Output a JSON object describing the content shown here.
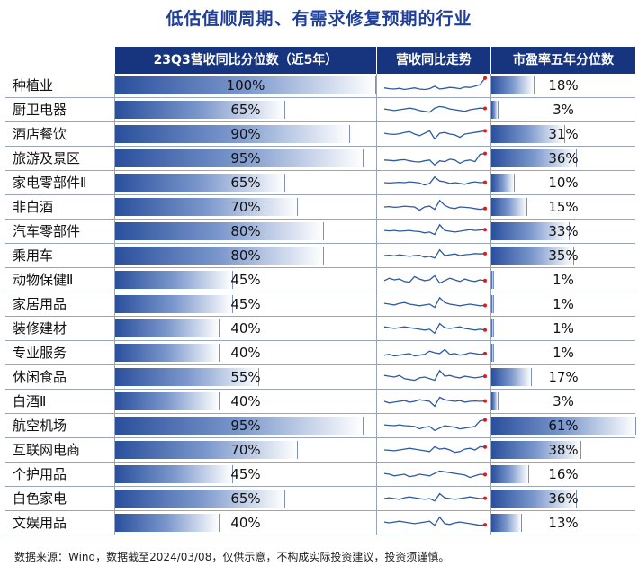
{
  "page": {
    "title": "低估值顺周期、有需求修复预期的行业",
    "footer": "数据来源：Wind，数据截至2024/03/08，仅供示意，不构成实际投资建议，投资须谨慎。"
  },
  "headers": {
    "col1": "",
    "col2": "23Q3营收同比分位数（近5年）",
    "col3": "营收同比走势",
    "col4": "市盈率五年分位数"
  },
  "colors": {
    "header_bg": "#17357f",
    "bar_dark": "#2a4f9c",
    "bar_light": "#ffffff",
    "spark_line": "#2e5aa0",
    "spark_end": "#e0191e",
    "title": "#1f3f99"
  },
  "chart_data": {
    "type": "table",
    "title": "低估值顺周期、有需求修复预期的行业",
    "columns": [
      "",
      "23Q3营收同比分位数（近5年）",
      "营收同比走势",
      "市盈率五年分位数"
    ],
    "rows": [
      {
        "name": "种植业",
        "rev_pct": 100,
        "rev_label": "100%",
        "pe_pct": 18,
        "pe_label": "18%"
      },
      {
        "name": "厨卫电器",
        "rev_pct": 65,
        "rev_label": "65%",
        "pe_pct": 3,
        "pe_label": "3%"
      },
      {
        "name": "酒店餐饮",
        "rev_pct": 90,
        "rev_label": "90%",
        "pe_pct": 31,
        "pe_label": "31%"
      },
      {
        "name": "旅游及景区",
        "rev_pct": 95,
        "rev_label": "95%",
        "pe_pct": 36,
        "pe_label": "36%"
      },
      {
        "name": "家电零部件Ⅱ",
        "rev_pct": 65,
        "rev_label": "65%",
        "pe_pct": 10,
        "pe_label": "10%"
      },
      {
        "name": "非白酒",
        "rev_pct": 70,
        "rev_label": "70%",
        "pe_pct": 15,
        "pe_label": "15%"
      },
      {
        "name": "汽车零部件",
        "rev_pct": 80,
        "rev_label": "80%",
        "pe_pct": 33,
        "pe_label": "33%"
      },
      {
        "name": "乘用车",
        "rev_pct": 80,
        "rev_label": "80%",
        "pe_pct": 35,
        "pe_label": "35%"
      },
      {
        "name": "动物保健Ⅱ",
        "rev_pct": 45,
        "rev_label": "45%",
        "pe_pct": 1,
        "pe_label": "1%"
      },
      {
        "name": "家居用品",
        "rev_pct": 45,
        "rev_label": "45%",
        "pe_pct": 1,
        "pe_label": "1%"
      },
      {
        "name": "装修建材",
        "rev_pct": 40,
        "rev_label": "40%",
        "pe_pct": 1,
        "pe_label": "1%"
      },
      {
        "name": "专业服务",
        "rev_pct": 40,
        "rev_label": "40%",
        "pe_pct": 1,
        "pe_label": "1%"
      },
      {
        "name": "休闲食品",
        "rev_pct": 55,
        "rev_label": "55%",
        "pe_pct": 17,
        "pe_label": "17%"
      },
      {
        "name": "白酒Ⅱ",
        "rev_pct": 40,
        "rev_label": "40%",
        "pe_pct": 3,
        "pe_label": "3%"
      },
      {
        "name": "航空机场",
        "rev_pct": 95,
        "rev_label": "95%",
        "pe_pct": 61,
        "pe_label": "61%"
      },
      {
        "name": "互联网电商",
        "rev_pct": 70,
        "rev_label": "70%",
        "pe_pct": 38,
        "pe_label": "38%"
      },
      {
        "name": "个护用品",
        "rev_pct": 45,
        "rev_label": "45%",
        "pe_pct": 16,
        "pe_label": "16%"
      },
      {
        "name": "白色家电",
        "rev_pct": 65,
        "rev_label": "65%",
        "pe_pct": 36,
        "pe_label": "36%"
      },
      {
        "name": "文娱用品",
        "rev_pct": 40,
        "rev_label": "40%",
        "pe_pct": 13,
        "pe_label": "13%"
      }
    ],
    "sparklines": [
      [
        0.35,
        0.3,
        0.28,
        0.32,
        0.25,
        0.3,
        0.35,
        0.28,
        0.25,
        0.3,
        0.45,
        0.28,
        0.32,
        0.38,
        0.35,
        0.3,
        0.4,
        0.38,
        0.45,
        0.55,
        0.95
      ],
      [
        0.55,
        0.5,
        0.45,
        0.5,
        0.55,
        0.6,
        0.55,
        0.45,
        0.4,
        0.35,
        0.6,
        0.7,
        0.65,
        0.55,
        0.5,
        0.45,
        0.4,
        0.5,
        0.55,
        0.6,
        0.58
      ],
      [
        0.55,
        0.5,
        0.48,
        0.52,
        0.6,
        0.65,
        0.5,
        0.4,
        0.55,
        0.7,
        0.2,
        0.55,
        0.6,
        0.5,
        0.45,
        0.3,
        0.5,
        0.55,
        0.6,
        0.65,
        0.7
      ],
      [
        0.4,
        0.38,
        0.35,
        0.4,
        0.42,
        0.35,
        0.3,
        0.28,
        0.35,
        0.4,
        0.1,
        0.35,
        0.3,
        0.45,
        0.4,
        0.2,
        0.35,
        0.4,
        0.3,
        0.75,
        0.8
      ],
      [
        0.5,
        0.48,
        0.5,
        0.52,
        0.5,
        0.55,
        0.52,
        0.48,
        0.35,
        0.45,
        0.85,
        0.6,
        0.55,
        0.45,
        0.5,
        0.45,
        0.4,
        0.5,
        0.55,
        0.5,
        0.52
      ],
      [
        0.5,
        0.52,
        0.48,
        0.5,
        0.55,
        0.52,
        0.5,
        0.3,
        0.5,
        0.55,
        0.35,
        0.9,
        0.6,
        0.45,
        0.4,
        0.5,
        0.48,
        0.45,
        0.4,
        0.35,
        0.4
      ],
      [
        0.55,
        0.52,
        0.55,
        0.5,
        0.52,
        0.55,
        0.5,
        0.48,
        0.4,
        0.45,
        0.3,
        0.9,
        0.55,
        0.5,
        0.45,
        0.5,
        0.55,
        0.6,
        0.55,
        0.58,
        0.6
      ],
      [
        0.5,
        0.52,
        0.48,
        0.55,
        0.5,
        0.45,
        0.5,
        0.52,
        0.4,
        0.45,
        0.35,
        0.85,
        0.5,
        0.55,
        0.6,
        0.5,
        0.55,
        0.58,
        0.62,
        0.6,
        0.62
      ],
      [
        0.45,
        0.6,
        0.5,
        0.55,
        0.4,
        0.35,
        0.7,
        0.55,
        0.45,
        0.5,
        0.75,
        0.3,
        0.45,
        0.6,
        0.5,
        0.4,
        0.55,
        0.45,
        0.4,
        0.5,
        0.45
      ],
      [
        0.55,
        0.5,
        0.45,
        0.55,
        0.6,
        0.5,
        0.45,
        0.4,
        0.45,
        0.5,
        0.3,
        0.9,
        0.6,
        0.5,
        0.45,
        0.4,
        0.45,
        0.5,
        0.45,
        0.4,
        0.42
      ],
      [
        0.6,
        0.55,
        0.5,
        0.55,
        0.6,
        0.55,
        0.5,
        0.45,
        0.4,
        0.45,
        0.2,
        0.8,
        0.55,
        0.5,
        0.55,
        0.6,
        0.5,
        0.45,
        0.4,
        0.45,
        0.4
      ],
      [
        0.35,
        0.4,
        0.3,
        0.35,
        0.4,
        0.45,
        0.3,
        0.35,
        0.4,
        0.6,
        0.5,
        0.45,
        0.7,
        0.4,
        0.45,
        0.35,
        0.4,
        0.5,
        0.45,
        0.4,
        0.45
      ],
      [
        0.6,
        0.55,
        0.5,
        0.6,
        0.4,
        0.35,
        0.3,
        0.45,
        0.5,
        0.4,
        0.3,
        0.9,
        0.55,
        0.6,
        0.5,
        0.45,
        0.55,
        0.5,
        0.45,
        0.5,
        0.55
      ],
      [
        0.5,
        0.4,
        0.45,
        0.5,
        0.55,
        0.45,
        0.5,
        0.6,
        0.55,
        0.5,
        0.2,
        0.75,
        0.6,
        0.55,
        0.5,
        0.55,
        0.45,
        0.5,
        0.52,
        0.5,
        0.52
      ],
      [
        0.55,
        0.52,
        0.5,
        0.55,
        0.5,
        0.48,
        0.45,
        0.3,
        0.4,
        0.45,
        0.2,
        0.35,
        0.5,
        0.45,
        0.4,
        0.3,
        0.35,
        0.4,
        0.45,
        0.8,
        0.85
      ],
      [
        0.5,
        0.48,
        0.45,
        0.5,
        0.55,
        0.6,
        0.55,
        0.5,
        0.45,
        0.4,
        0.7,
        0.55,
        0.6,
        0.5,
        0.35,
        0.4,
        0.55,
        0.6,
        0.5,
        0.7,
        0.68
      ],
      [
        0.55,
        0.5,
        0.4,
        0.45,
        0.5,
        0.35,
        0.4,
        0.5,
        0.45,
        0.4,
        0.55,
        0.7,
        0.65,
        0.6,
        0.55,
        0.5,
        0.45,
        0.3,
        0.4,
        0.5,
        0.48
      ],
      [
        0.5,
        0.55,
        0.5,
        0.45,
        0.55,
        0.6,
        0.55,
        0.5,
        0.45,
        0.5,
        0.35,
        0.8,
        0.55,
        0.5,
        0.45,
        0.5,
        0.55,
        0.6,
        0.55,
        0.5,
        0.52
      ],
      [
        0.55,
        0.5,
        0.55,
        0.6,
        0.55,
        0.5,
        0.45,
        0.5,
        0.55,
        0.6,
        0.35,
        0.85,
        0.45,
        0.4,
        0.5,
        0.55,
        0.5,
        0.45,
        0.4,
        0.35,
        0.38
      ]
    ]
  }
}
